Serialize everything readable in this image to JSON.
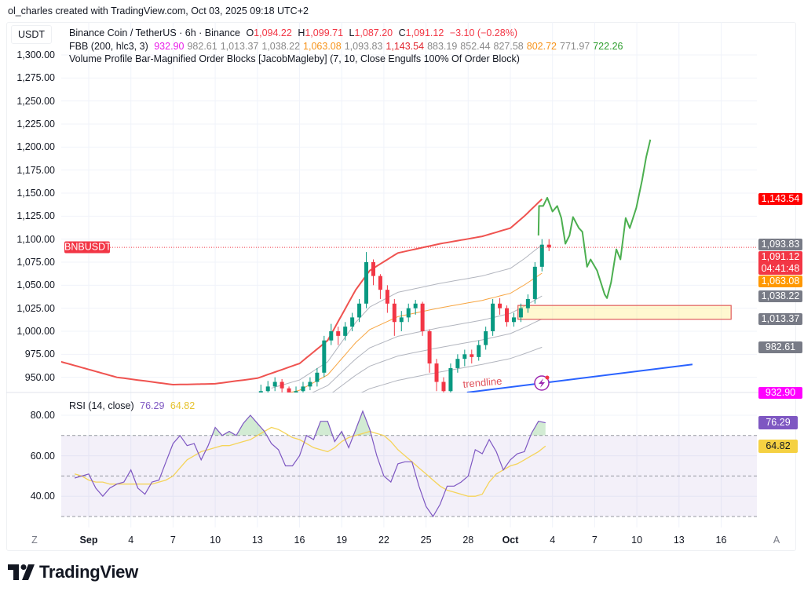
{
  "credit": "ol_charles created with TradingView.com, Oct 03, 2025 09:18 UTC+2",
  "header": {
    "currency_unit": "USDT",
    "symbol_line": {
      "name": "Binance Coin / TetherUS · 6h · Binance",
      "o_label": "O",
      "o": "1,094.22",
      "h_label": "H",
      "h": "1,099.71",
      "l_label": "L",
      "l": "1,087.20",
      "c_label": "C",
      "c": "1,091.12",
      "change": "−3.10 (−0.28%)"
    },
    "fbb_line": {
      "name": "FBB (200, hlc3, 3)",
      "values": [
        "932.90",
        "982.61",
        "1,013.37",
        "1,038.22",
        "1,063.08",
        "1,093.83",
        "1,143.54",
        "883.19",
        "852.44",
        "827.58",
        "802.72",
        "771.97",
        "722.26"
      ],
      "colors": [
        "#e91ee9",
        "#8a8a8a",
        "#8a8a8a",
        "#8a8a8a",
        "#f7931a",
        "#8a8a8a",
        "#e0262f",
        "#8a8a8a",
        "#8a8a8a",
        "#8a8a8a",
        "#f7931a",
        "#8a8a8a",
        "#2e9e2e"
      ]
    },
    "indicator_line": "Volume Profile Bar-Magnified Order Blocks [JacobMagleby] (7, 10, Close Engulfs 100% Of Order Block)"
  },
  "colors": {
    "up": "#089981",
    "down": "#f23645",
    "upper_band": "#ef5350",
    "inner_band": "#b2b5be",
    "orange_band": "#f7a541",
    "projection": "#4caf50",
    "trendline": "#2962ff",
    "rsi": "#7e57c2",
    "rsi_ma": "#f5d45a"
  },
  "price_axis": {
    "ticks": [
      "1,300.00",
      "1,275.00",
      "1,250.00",
      "1,225.00",
      "1,200.00",
      "1,175.00",
      "1,150.00",
      "1,125.00",
      "1,100.00",
      "1,075.00",
      "1,050.00",
      "1,025.00",
      "1,000.00",
      "975.00",
      "950.00"
    ],
    "labels": [
      {
        "value": 1143.54,
        "text": "1,143.54",
        "color": "#ff0000"
      },
      {
        "value": 1093.83,
        "text": "1,093.83",
        "color": "#787b86"
      },
      {
        "value": 1063.08,
        "text": "1,063.08",
        "color": "#ff9800"
      },
      {
        "value": 1038.22,
        "text": "1,038.22",
        "color": "#787b86"
      },
      {
        "value": 1013.37,
        "text": "1,013.37",
        "color": "#787b86"
      },
      {
        "value": 982.61,
        "text": "982.61",
        "color": "#787b86"
      },
      {
        "value": 932.9,
        "text": "932.90",
        "color": "#ff00ff"
      }
    ],
    "last_price": {
      "value": 1091.12,
      "text": "1,091.12",
      "countdown": "04:41:48",
      "color": "#f23645",
      "symbol_tag": "BNBUSDT"
    }
  },
  "date_axis": {
    "left_button": "Z",
    "right_button": "A",
    "ticks": [
      {
        "date": "2025-09-01",
        "text": "Sep",
        "bold": true
      },
      {
        "date": "2025-09-04",
        "text": "4"
      },
      {
        "date": "2025-09-07",
        "text": "7"
      },
      {
        "date": "2025-09-10",
        "text": "10"
      },
      {
        "date": "2025-09-13",
        "text": "13"
      },
      {
        "date": "2025-09-16",
        "text": "16"
      },
      {
        "date": "2025-09-19",
        "text": "19"
      },
      {
        "date": "2025-09-22",
        "text": "22"
      },
      {
        "date": "2025-09-25",
        "text": "25"
      },
      {
        "date": "2025-09-28",
        "text": "28"
      },
      {
        "date": "2025-10-01",
        "text": "Oct",
        "bold": true
      },
      {
        "date": "2025-10-04",
        "text": "4"
      },
      {
        "date": "2025-10-07",
        "text": "7"
      },
      {
        "date": "2025-10-10",
        "text": "10"
      },
      {
        "date": "2025-10-13",
        "text": "13"
      },
      {
        "date": "2025-10-16",
        "text": "16"
      }
    ]
  },
  "chart_data": [
    {
      "type": "candlestick",
      "title": "Binance Coin / TetherUS · 6h · Binance",
      "ylim": [
        930,
        1310
      ],
      "candles_start": "2025-09-13 00:00",
      "candle_interval_hours": 12,
      "candles": [
        [
          930,
          942,
          926,
          935
        ],
        [
          935,
          946,
          930,
          940
        ],
        [
          940,
          950,
          935,
          945
        ],
        [
          945,
          948,
          932,
          938
        ],
        [
          938,
          940,
          925,
          930
        ],
        [
          930,
          940,
          926,
          935
        ],
        [
          935,
          945,
          930,
          940
        ],
        [
          940,
          950,
          936,
          945
        ],
        [
          945,
          960,
          940,
          955
        ],
        [
          955,
          995,
          950,
          990
        ],
        [
          990,
          1008,
          985,
          1000
        ],
        [
          1000,
          1005,
          985,
          995
        ],
        [
          995,
          1010,
          990,
          1005
        ],
        [
          1005,
          1020,
          1000,
          1015
        ],
        [
          1015,
          1035,
          1010,
          1030
        ],
        [
          1030,
          1086,
          1025,
          1075
        ],
        [
          1075,
          1078,
          1050,
          1060
        ],
        [
          1060,
          1062,
          1035,
          1045
        ],
        [
          1045,
          1050,
          1020,
          1030
        ],
        [
          1030,
          1035,
          995,
          1010
        ],
        [
          1010,
          1022,
          1000,
          1015
        ],
        [
          1015,
          1030,
          1010,
          1025
        ],
        [
          1025,
          1034,
          1018,
          1030
        ],
        [
          1030,
          1032,
          995,
          1000
        ],
        [
          1000,
          1002,
          955,
          965
        ],
        [
          965,
          970,
          935,
          945
        ],
        [
          945,
          950,
          925,
          935
        ],
        [
          935,
          965,
          930,
          960
        ],
        [
          960,
          975,
          955,
          970
        ],
        [
          970,
          980,
          962,
          975
        ],
        [
          975,
          980,
          965,
          972
        ],
        [
          972,
          990,
          968,
          985
        ],
        [
          985,
          1005,
          980,
          1000
        ],
        [
          1000,
          1035,
          995,
          1030
        ],
        [
          1030,
          1036,
          1018,
          1025
        ],
        [
          1025,
          1028,
          1005,
          1010
        ],
        [
          1010,
          1020,
          1005,
          1015
        ],
        [
          1015,
          1030,
          1010,
          1025
        ],
        [
          1025,
          1040,
          1020,
          1035
        ],
        [
          1035,
          1075,
          1030,
          1070
        ],
        [
          1070,
          1100,
          1065,
          1094
        ],
        [
          1094,
          1100,
          1087,
          1091
        ]
      ],
      "fbb": {
        "basis": [
          [
            "2025-08-30",
            870
          ],
          [
            "2025-09-10",
            880
          ],
          [
            "2025-09-20",
            895
          ],
          [
            "2025-09-25",
            910
          ],
          [
            "2025-10-03 06:00",
            932.9
          ]
        ],
        "upper": [
          [
            "2025-08-30",
            967
          ],
          [
            "2025-09-03",
            950
          ],
          [
            "2025-09-07",
            942
          ],
          [
            "2025-09-10",
            943
          ],
          [
            "2025-09-13",
            949
          ],
          [
            "2025-09-16",
            965
          ],
          [
            "2025-09-18",
            990
          ],
          [
            "2025-09-20",
            1045
          ],
          [
            "2025-09-21",
            1066
          ],
          [
            "2025-09-23",
            1085
          ],
          [
            "2025-09-26",
            1095
          ],
          [
            "2025-09-29",
            1103
          ],
          [
            "2025-10-01",
            1112
          ],
          [
            "2025-10-02",
            1125
          ],
          [
            "2025-10-03 06:00",
            1143.54
          ]
        ],
        "ratios": [
          0.236,
          0.382,
          0.5,
          0.618,
          0.764
        ]
      },
      "drawings": {
        "projection": [
          [
            "2025-10-03 00:00",
            1104
          ],
          [
            "2025-10-03 01:00",
            1136
          ],
          [
            "2025-10-03 08:00",
            1136
          ],
          [
            "2025-10-03 15:00",
            1145
          ],
          [
            "2025-10-04 00:00",
            1130
          ],
          [
            "2025-10-04 08:00",
            1136
          ],
          [
            "2025-10-04 15:00",
            1123
          ],
          [
            "2025-10-04 22:00",
            1095
          ],
          [
            "2025-10-05 05:00",
            1104
          ],
          [
            "2025-10-05 11:00",
            1124
          ],
          [
            "2025-10-05 21:00",
            1112
          ],
          [
            "2025-10-06 03:00",
            1108
          ],
          [
            "2025-10-06 11:00",
            1070
          ],
          [
            "2025-10-06 17:00",
            1078
          ],
          [
            "2025-10-07 04:00",
            1066
          ],
          [
            "2025-10-07 17:00",
            1040
          ],
          [
            "2025-10-07 21:00",
            1036
          ],
          [
            "2025-10-08 04:00",
            1053
          ],
          [
            "2025-10-08 13:00",
            1089
          ],
          [
            "2025-10-08 20:00",
            1078
          ],
          [
            "2025-10-09 05:00",
            1123
          ],
          [
            "2025-10-09 12:00",
            1112
          ],
          [
            "2025-10-09 23:00",
            1134
          ],
          [
            "2025-10-10 09:00",
            1164
          ],
          [
            "2025-10-10 16:00",
            1189
          ],
          [
            "2025-10-10 23:00",
            1208
          ]
        ],
        "order_block": {
          "from": "2025-10-01 13:00",
          "to": "2025-10-16 17:00",
          "top": 1028,
          "bottom": 1013
        },
        "trendline": {
          "from": [
            "2025-09-27 22:00",
            933.5
          ],
          "to": [
            "2025-10-13 23:00",
            964
          ],
          "label": "trendline"
        }
      }
    },
    {
      "type": "line",
      "title": "RSI (14, close)",
      "legend_values": {
        "rsi": "76.29",
        "ma": "64.82"
      },
      "ylim": [
        25,
        87
      ],
      "ticks": [
        "80.00",
        "60.00",
        "40.00"
      ],
      "bands": {
        "upper": 70,
        "middle": 50,
        "lower": 30
      },
      "start": "2025-08-31 00:00",
      "interval_hours": 12,
      "rsi": [
        49,
        50,
        51,
        44,
        40,
        44,
        46,
        47,
        53,
        44,
        41,
        47,
        48,
        57,
        66,
        70,
        65,
        66,
        58,
        65,
        74,
        70,
        72,
        70,
        76,
        80,
        76,
        72,
        66,
        63,
        55,
        55,
        60,
        70,
        68,
        77,
        77,
        67,
        72,
        64,
        73,
        82,
        73,
        60,
        50,
        47,
        56,
        57,
        57,
        45,
        35,
        30,
        36,
        45,
        45,
        47,
        50,
        63,
        61,
        68,
        62,
        53,
        58,
        61,
        62,
        71,
        77,
        76.29
      ],
      "ma": [
        51,
        50,
        48,
        47,
        47,
        46,
        46,
        46,
        46,
        46,
        46,
        46,
        47,
        48,
        50,
        54,
        58,
        60,
        62,
        63,
        64,
        65,
        65,
        66,
        67,
        68,
        70,
        72,
        74,
        73,
        71,
        69,
        68,
        66,
        64,
        63,
        62,
        64,
        67,
        69,
        70,
        71,
        72,
        71,
        70,
        67,
        63,
        60,
        57,
        54,
        51,
        48,
        45,
        43,
        42,
        41,
        40,
        40,
        41,
        47,
        51,
        53,
        55,
        56,
        58,
        60,
        62,
        64.82
      ],
      "right_labels": [
        {
          "value": 76.29,
          "text": "76.29",
          "bg": "#7e57c2",
          "fg": "#ffffff"
        },
        {
          "value": 64.82,
          "text": "64.82",
          "bg": "#f5d142",
          "fg": "#131722"
        }
      ]
    }
  ],
  "footer": {
    "brand": "TradingView"
  }
}
